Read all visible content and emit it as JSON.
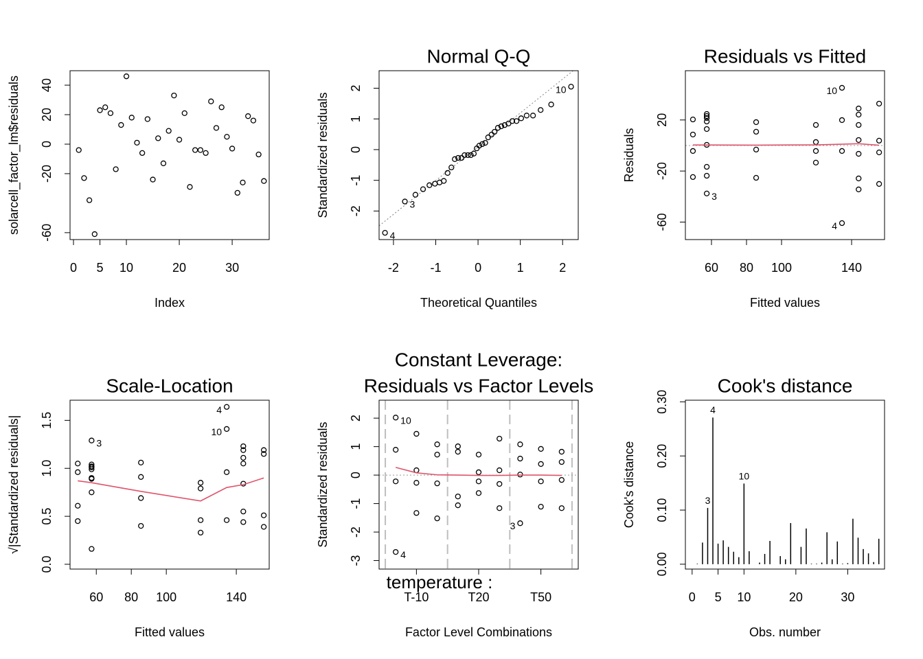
{
  "chart_data": [
    {
      "type": "scatter",
      "xlabel": "Index",
      "ylabel": "solarcell_factor_lm$residuals",
      "point_color": "#000000",
      "x": [
        1,
        2,
        3,
        4,
        5,
        6,
        7,
        8,
        9,
        10,
        11,
        12,
        13,
        14,
        15,
        16,
        17,
        18,
        19,
        20,
        21,
        22,
        23,
        24,
        25,
        26,
        27,
        28,
        29,
        30,
        31,
        32,
        33,
        34,
        35,
        36
      ],
      "values": [
        -4,
        -23,
        -38,
        -61,
        23,
        25,
        21,
        -17,
        13,
        46,
        18,
        1,
        -6,
        17,
        -24,
        4,
        -13,
        9,
        33,
        3,
        21,
        -29,
        -4,
        -4,
        -6,
        29,
        11,
        25,
        5,
        -3,
        -33,
        -26,
        19,
        16,
        -7,
        -25
      ],
      "xlim": [
        -0.65,
        37
      ],
      "ylim": [
        -64.7,
        49.8
      ],
      "xticks": [
        0,
        5,
        10,
        20,
        30
      ],
      "yticks": [
        -60,
        -20,
        0,
        20,
        40
      ]
    },
    {
      "type": "qq",
      "title": "Normal Q-Q",
      "xlabel": "Theoretical Quantiles",
      "ylabel": "Standardized residuals",
      "point_color": "#000000",
      "qq_line_color": "#808080",
      "x": [
        -2.2,
        -1.73,
        -1.48,
        -1.3,
        -1.15,
        -1.02,
        -0.91,
        -0.81,
        -0.72,
        -0.63,
        -0.55,
        -0.47,
        -0.39,
        -0.32,
        -0.24,
        -0.17,
        -0.1,
        -0.03,
        0.03,
        0.1,
        0.17,
        0.24,
        0.32,
        0.39,
        0.47,
        0.55,
        0.63,
        0.72,
        0.81,
        0.91,
        1.02,
        1.15,
        1.3,
        1.48,
        1.73,
        2.2
      ],
      "values": [
        -2.71,
        -1.69,
        -1.47,
        -1.29,
        -1.16,
        -1.11,
        -1.07,
        -1.02,
        -0.76,
        -0.58,
        -0.31,
        -0.27,
        -0.27,
        -0.18,
        -0.18,
        -0.18,
        -0.13,
        0.04,
        0.13,
        0.18,
        0.22,
        0.4,
        0.49,
        0.58,
        0.71,
        0.76,
        0.8,
        0.85,
        0.93,
        0.93,
        1.02,
        1.11,
        1.11,
        1.29,
        1.47,
        2.05
      ],
      "point_labels": [
        "4",
        "3",
        null,
        null,
        null,
        null,
        null,
        null,
        null,
        null,
        null,
        null,
        null,
        null,
        null,
        null,
        null,
        null,
        null,
        null,
        null,
        null,
        null,
        null,
        null,
        null,
        null,
        null,
        null,
        null,
        null,
        null,
        null,
        null,
        null,
        "10"
      ],
      "xlim": [
        -2.34,
        2.37
      ],
      "ylim": [
        -2.93,
        2.57
      ],
      "xticks": [
        -2,
        -1,
        0,
        1,
        2
      ],
      "yticks": [
        -2,
        -1,
        0,
        1,
        2
      ]
    },
    {
      "type": "scatter",
      "title": "Residuals vs Fitted",
      "xlabel": "Fitted values",
      "ylabel": "Residuals",
      "point_color": "#000000",
      "reference_line": 0,
      "x": [
        49.4,
        49.4,
        49.4,
        49.4,
        57.3,
        57.3,
        57.3,
        57.3,
        57.3,
        57.3,
        57.3,
        57.3,
        57.3,
        85.5,
        85.5,
        85.5,
        85.5,
        119.6,
        119.6,
        119.6,
        119.6,
        134.5,
        134.5,
        134.5,
        134.5,
        144,
        144,
        144,
        144,
        144,
        144,
        144,
        155.7,
        155.7,
        155.7,
        155.7
      ],
      "values": [
        20.4,
        8.6,
        -4.3,
        -24.7,
        24.7,
        23.1,
        21.5,
        18.8,
        12.9,
        0.5,
        -16.7,
        -23.7,
        -37.6,
        18.3,
        10.8,
        -3.2,
        -25.3,
        16.1,
        2.7,
        -4.3,
        -13.4,
        45.2,
        19.9,
        -4.3,
        -60.8,
        29.0,
        24.2,
        16.1,
        4.3,
        -6.5,
        -25.8,
        -34.4,
        32.8,
        3.8,
        -5.4,
        -30.1
      ],
      "point_labels": [
        null,
        null,
        null,
        null,
        null,
        null,
        null,
        null,
        null,
        null,
        null,
        null,
        "3",
        null,
        null,
        null,
        null,
        null,
        null,
        null,
        null,
        "10",
        null,
        null,
        "4",
        null,
        null,
        null,
        null,
        null,
        null,
        null,
        null,
        null,
        null,
        null
      ],
      "smooth": {
        "color": "#DF536B",
        "x": [
          49.4,
          57.3,
          85.5,
          119.6,
          134.5,
          144,
          155.7
        ],
        "values": [
          0.4,
          0.4,
          0.3,
          0.5,
          1.0,
          1.4,
          0.2
        ]
      },
      "xlim": [
        45.1,
        158.8
      ],
      "ylim": [
        -73.7,
        58.6
      ],
      "xticks": [
        60,
        80,
        100,
        140
      ],
      "yticks": [
        -60,
        -20,
        20
      ]
    },
    {
      "type": "scatter",
      "title": "Scale-Location",
      "xlabel": "Fitted values",
      "ylabel": "√|Standardized residuals|",
      "point_color": "#000000",
      "x": [
        49.4,
        49.4,
        49.4,
        49.4,
        57.3,
        57.3,
        57.3,
        57.3,
        57.3,
        57.3,
        57.3,
        57.3,
        57.3,
        85.5,
        85.5,
        85.5,
        85.5,
        119.6,
        119.6,
        119.6,
        119.6,
        134.5,
        134.5,
        134.5,
        134.5,
        144,
        144,
        144,
        144,
        144,
        144,
        144,
        155.7,
        155.7,
        155.7,
        155.7
      ],
      "values": [
        1.05,
        0.96,
        0.61,
        0.45,
        1.29,
        1.04,
        1.02,
        1.01,
        0.99,
        0.9,
        0.89,
        0.75,
        0.16,
        1.06,
        0.91,
        0.69,
        0.4,
        0.85,
        0.79,
        0.46,
        0.33,
        1.64,
        1.41,
        0.96,
        0.46,
        1.23,
        1.19,
        1.11,
        1.05,
        0.84,
        0.55,
        0.44,
        1.19,
        1.15,
        0.51,
        0.39
      ],
      "point_labels": [
        null,
        null,
        null,
        null,
        "3",
        null,
        null,
        null,
        null,
        null,
        null,
        null,
        null,
        null,
        null,
        null,
        null,
        null,
        null,
        null,
        null,
        "4",
        "10",
        null,
        null,
        null,
        null,
        null,
        null,
        null,
        null,
        null,
        null,
        null,
        null,
        null
      ],
      "smooth": {
        "color": "#DF536B",
        "x": [
          49.4,
          57.3,
          85.5,
          119.6,
          134.5,
          144,
          155.7
        ],
        "values": [
          0.87,
          0.85,
          0.76,
          0.66,
          0.8,
          0.83,
          0.9
        ]
      },
      "xlim": [
        45.0,
        158.8
      ],
      "ylim": [
        -0.05,
        1.71
      ],
      "xticks": [
        60,
        80,
        100,
        140
      ],
      "yticks": [
        {
          "value": 0,
          "label": "0.0"
        },
        0.5,
        {
          "value": 1,
          "label": "1.0"
        },
        1.5
      ]
    },
    {
      "type": "scatter",
      "title": [
        "Constant Leverage:",
        "Residuals vs Factor Levels"
      ],
      "xlabel": "Factor Level Combinations",
      "ylabel": "Standardized residuals",
      "factor_label": "temperature :",
      "point_color": "#000000",
      "reference_line": 0,
      "dividers": [
        0.5,
        3.5,
        6.5,
        9.5
      ],
      "x": [
        1,
        1,
        1,
        1,
        2,
        2,
        2,
        2,
        3,
        3,
        3,
        3,
        4,
        4,
        4,
        4,
        5,
        5,
        5,
        5,
        6,
        6,
        6,
        6,
        7,
        7,
        7,
        7,
        8,
        8,
        8,
        8,
        9,
        9,
        9,
        9
      ],
      "values": [
        2.02,
        0.89,
        -0.22,
        -2.7,
        1.45,
        0.17,
        -0.27,
        -1.33,
        1.08,
        0.72,
        -0.29,
        -1.52,
        1.01,
        0.82,
        -0.75,
        -1.06,
        0.72,
        0.1,
        -0.22,
        -0.63,
        1.28,
        0.17,
        -0.31,
        -1.16,
        1.08,
        0.58,
        0.02,
        -1.69,
        0.92,
        0.39,
        -0.22,
        -1.11,
        0.82,
        0.46,
        -0.17,
        -1.16
      ],
      "point_labels": [
        "10",
        null,
        null,
        "4",
        null,
        null,
        null,
        null,
        null,
        null,
        null,
        null,
        null,
        null,
        null,
        null,
        null,
        null,
        null,
        null,
        null,
        null,
        null,
        null,
        null,
        null,
        null,
        "3",
        null,
        null,
        null,
        null,
        null,
        null,
        null,
        null
      ],
      "smooth": {
        "color": "#DF536B",
        "x": [
          1,
          2,
          3,
          4,
          5,
          6,
          7,
          8,
          9
        ],
        "values": [
          0.27,
          0.08,
          0.01,
          0.0,
          -0.01,
          -0.01,
          0.0,
          0.0,
          -0.01
        ]
      },
      "xlim": [
        0.2,
        9.8
      ],
      "ylim": [
        -3.3,
        2.63
      ],
      "xticks": [
        {
          "value": 2,
          "label": "T-10"
        },
        {
          "value": 5,
          "label": "T20"
        },
        {
          "value": 8,
          "label": "T50"
        }
      ],
      "yticks": [
        -3,
        -2,
        -1,
        0,
        1,
        2
      ]
    },
    {
      "type": "spike",
      "title": "Cook's distance",
      "xlabel": "Obs. number",
      "ylabel": "Cook's distance",
      "point_color": "#000000",
      "x": [
        1,
        2,
        3,
        4,
        5,
        6,
        7,
        8,
        9,
        10,
        11,
        12,
        13,
        14,
        15,
        16,
        17,
        18,
        19,
        20,
        21,
        22,
        23,
        24,
        25,
        26,
        27,
        28,
        29,
        30,
        31,
        32,
        33,
        34,
        35,
        36
      ],
      "values": [
        0.001,
        0.04,
        0.104,
        0.271,
        0.038,
        0.044,
        0.032,
        0.023,
        0.013,
        0.149,
        0.024,
        0.0,
        0.003,
        0.019,
        0.043,
        0.0,
        0.015,
        0.009,
        0.076,
        0.0,
        0.032,
        0.066,
        0.001,
        0.001,
        0.003,
        0.059,
        0.009,
        0.042,
        0.001,
        0.002,
        0.084,
        0.049,
        0.028,
        0.02,
        0.004,
        0.047
      ],
      "point_labels": [
        null,
        null,
        "3",
        "4",
        null,
        null,
        null,
        null,
        null,
        "10",
        null,
        null,
        null,
        null,
        null,
        null,
        null,
        null,
        null,
        null,
        null,
        null,
        null,
        null,
        null,
        null,
        null,
        null,
        null,
        null,
        null,
        null,
        null,
        null,
        null,
        null
      ],
      "xlim": [
        -1.3,
        37.1
      ],
      "ylim": [
        -0.009,
        0.303
      ],
      "xticks": [
        0,
        5,
        10,
        20,
        30
      ],
      "yticks": [
        {
          "value": 0,
          "label": "0.00"
        },
        {
          "value": 0.1,
          "label": "0.10"
        },
        {
          "value": 0.2,
          "label": "0.20"
        },
        {
          "value": 0.3,
          "label": "0.30"
        }
      ]
    }
  ]
}
